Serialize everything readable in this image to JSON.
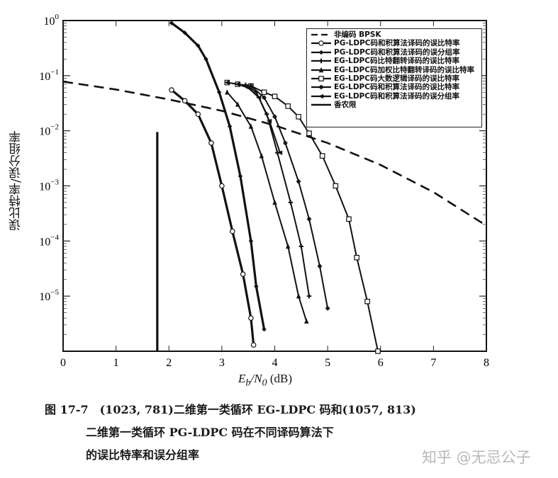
{
  "chart_data": {
    "type": "line",
    "title": "",
    "xlabel": "Eb/N0 (dB)",
    "ylabel": "误比特率/误分组率",
    "xlim": [
      0,
      8
    ],
    "ylim": [
      1e-06,
      1
    ],
    "yscale": "log",
    "x_ticks": [
      "0",
      "1",
      "2",
      "3",
      "4",
      "5",
      "6",
      "7",
      "8"
    ],
    "y_ticks": [
      "10^0",
      "10^-1",
      "10^-2",
      "10^-3",
      "10^-4",
      "10^-5"
    ],
    "legend_position": "upper right",
    "grid": false,
    "series": [
      {
        "name": "非编码 BPSK",
        "style": "dashed",
        "marker": "none",
        "x": [
          0,
          1,
          2,
          3,
          4,
          5,
          6,
          7,
          8
        ],
        "y": [
          0.078,
          0.056,
          0.037,
          0.023,
          0.0125,
          0.006,
          0.0024,
          0.00077,
          0.00019
        ]
      },
      {
        "name": "PG-LDPC码和积算法译码的误比特率",
        "style": "solid-bold",
        "marker": "circle",
        "x": [
          2.05,
          2.3,
          2.55,
          2.8,
          3.0,
          3.2,
          3.4,
          3.55,
          3.6
        ],
        "y": [
          0.055,
          0.035,
          0.02,
          0.006,
          0.001,
          0.00015,
          2.5e-05,
          4e-06,
          1.3e-06
        ]
      },
      {
        "name": "PG-LDPC码和积算法译码的误分组率",
        "style": "solid-bold",
        "marker": "diamond",
        "x": [
          2.05,
          2.3,
          2.55,
          2.7,
          2.95,
          3.15,
          3.35,
          3.55,
          3.65,
          3.8
        ],
        "y": [
          0.9,
          0.6,
          0.35,
          0.2,
          0.05,
          0.012,
          0.0015,
          0.0001,
          1.5e-05,
          2.5e-06
        ]
      },
      {
        "name": "EG-LDPC码比特翻转译码的误比特率",
        "style": "solid",
        "marker": "cross",
        "x": [
          3.45,
          3.65,
          3.85,
          4.05,
          4.3,
          4.5,
          4.65
        ],
        "y": [
          0.068,
          0.05,
          0.02,
          0.004,
          0.0005,
          8e-05,
          1e-05
        ]
      },
      {
        "name": "EG-LDPC码加权比特翻转译码的误比特率",
        "style": "solid",
        "marker": "triangle",
        "x": [
          3.1,
          3.3,
          3.55,
          3.75,
          4.0,
          4.25,
          4.45,
          4.6
        ],
        "y": [
          0.05,
          0.03,
          0.012,
          0.0035,
          0.0005,
          8e-05,
          1e-05,
          3.5e-06
        ]
      },
      {
        "name": "EG-LDPC码大数逻辑译码的误比特率",
        "style": "solid",
        "marker": "square",
        "x": [
          3.1,
          3.3,
          3.55,
          3.8,
          4.0,
          4.25,
          4.45,
          4.65,
          4.9,
          5.15,
          5.4,
          5.55,
          5.75,
          5.95
        ],
        "y": [
          0.075,
          0.07,
          0.065,
          0.05,
          0.042,
          0.028,
          0.018,
          0.009,
          0.0035,
          0.001,
          0.00025,
          5e-05,
          8e-06,
          1e-06
        ]
      },
      {
        "name": "EG-LDPC码和积算法译码的误比特率",
        "style": "solid",
        "marker": "star",
        "x": [
          3.55,
          3.8,
          4.0,
          4.2,
          4.45,
          4.65,
          4.85,
          5.0
        ],
        "y": [
          0.065,
          0.04,
          0.018,
          0.006,
          0.0012,
          0.00025,
          3.5e-05,
          6e-06
        ]
      },
      {
        "name": "EG-LDPC码和积算法译码的误分组率",
        "style": "solid",
        "marker": "left-triangle",
        "x": [
          3.1,
          3.3,
          3.5,
          3.7,
          3.9,
          4.1
        ],
        "y": [
          0.075,
          0.07,
          0.06,
          0.04,
          0.015,
          0.004
        ]
      },
      {
        "name": "香农限",
        "style": "solid-bold",
        "marker": "none",
        "x": [
          1.78,
          1.78
        ],
        "y": [
          0.0095,
          1e-06
        ]
      }
    ]
  },
  "axes": {
    "xlabel_main": "E",
    "xlabel_sub_b": "b",
    "xlabel_slash": "/N",
    "xlabel_sub_0": "0",
    "xlabel_unit": " (dB)",
    "ylabel": "误比特率/误分组率",
    "x_ticks": [
      "0",
      "1",
      "2",
      "3",
      "4",
      "5",
      "6",
      "7",
      "8"
    ],
    "y_ticks": [
      {
        "base": "10",
        "exp": "0"
      },
      {
        "base": "10",
        "exp": "−1"
      },
      {
        "base": "10",
        "exp": "−2"
      },
      {
        "base": "10",
        "exp": "−3"
      },
      {
        "base": "10",
        "exp": "−4"
      },
      {
        "base": "10",
        "exp": "−5"
      }
    ]
  },
  "legend": {
    "items": [
      "非编码 BPSK",
      "PG-LDPC码和积算法译码的误比特率",
      "PG-LDPC码和积算法译码的误分组率",
      "EG-LDPC码比特翻转译码的误比特率",
      "EG-LDPC码加权比特翻转译码的误比特率",
      "EG-LDPC码大数逻辑译码的误比特率",
      "EG-LDPC码和积算法译码的误比特率",
      "EG-LDPC码和积算法译码的误分组率",
      "香农限"
    ]
  },
  "caption": {
    "line1": "图 17-7　(1023, 781)二维第一类循环 EG-LDPC 码和(1057, 813)",
    "line2": "二维第一类循环 PG-LDPC 码在不同译码算法下",
    "line3": "的误比特率和误分组率"
  },
  "watermark": "知乎 @无忌公子"
}
